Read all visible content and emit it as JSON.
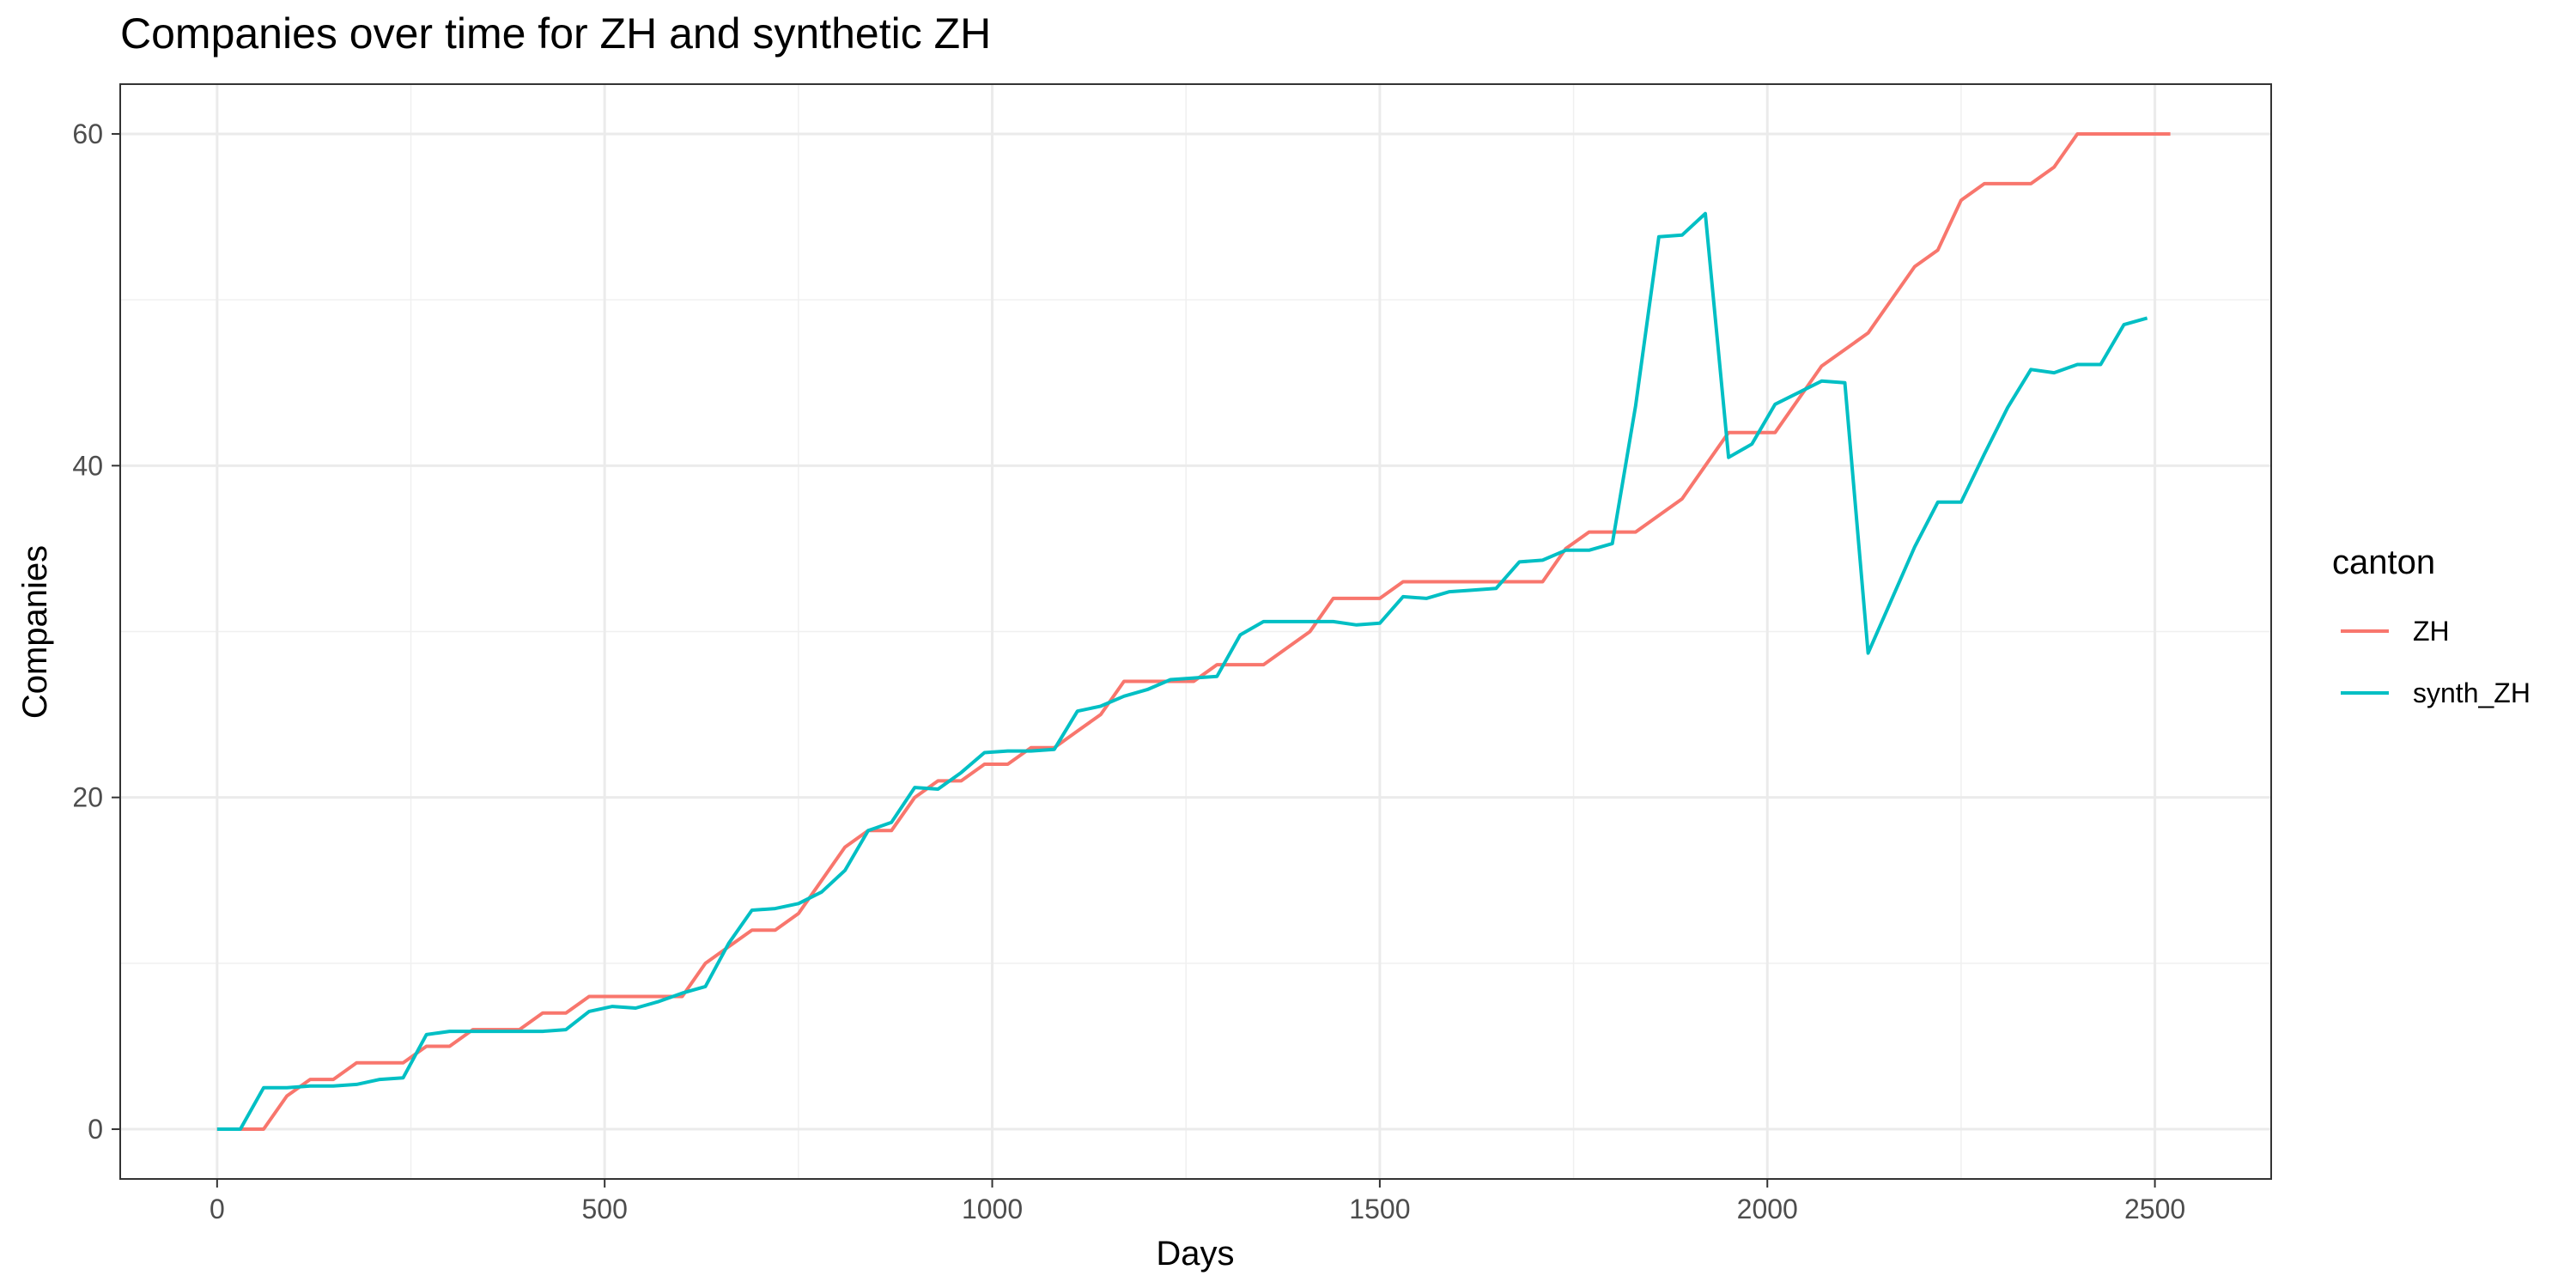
{
  "chart_data": {
    "type": "line",
    "title": "Companies over time for ZH and synthetic ZH",
    "xlabel": "Days",
    "ylabel": "Companies",
    "xlim": [
      -125,
      2650
    ],
    "ylim": [
      -3,
      63
    ],
    "x_ticks": [
      0,
      500,
      1000,
      1500,
      2000,
      2500
    ],
    "y_ticks": [
      0,
      20,
      40,
      60
    ],
    "grid": true,
    "legend": {
      "title": "canton",
      "placement": "right"
    },
    "series": [
      {
        "name": "ZH",
        "color": "#F8766D",
        "points": [
          [
            0,
            0
          ],
          [
            30,
            0
          ],
          [
            60,
            0
          ],
          [
            90,
            2
          ],
          [
            120,
            3
          ],
          [
            150,
            3
          ],
          [
            180,
            4
          ],
          [
            210,
            4
          ],
          [
            240,
            4
          ],
          [
            270,
            5
          ],
          [
            300,
            5
          ],
          [
            330,
            6
          ],
          [
            360,
            6
          ],
          [
            390,
            6
          ],
          [
            420,
            7
          ],
          [
            450,
            7
          ],
          [
            480,
            8
          ],
          [
            510,
            8
          ],
          [
            540,
            8
          ],
          [
            570,
            8
          ],
          [
            600,
            8
          ],
          [
            630,
            10
          ],
          [
            660,
            11
          ],
          [
            690,
            12
          ],
          [
            720,
            12
          ],
          [
            750,
            13
          ],
          [
            780,
            15
          ],
          [
            810,
            17
          ],
          [
            840,
            18
          ],
          [
            870,
            18
          ],
          [
            900,
            20
          ],
          [
            930,
            21
          ],
          [
            960,
            21
          ],
          [
            990,
            22
          ],
          [
            1020,
            22
          ],
          [
            1050,
            23
          ],
          [
            1080,
            23
          ],
          [
            1110,
            24
          ],
          [
            1140,
            25
          ],
          [
            1170,
            27
          ],
          [
            1200,
            27
          ],
          [
            1230,
            27
          ],
          [
            1260,
            27
          ],
          [
            1290,
            28
          ],
          [
            1320,
            28
          ],
          [
            1350,
            28
          ],
          [
            1380,
            29
          ],
          [
            1410,
            30
          ],
          [
            1440,
            32
          ],
          [
            1470,
            32
          ],
          [
            1500,
            32
          ],
          [
            1530,
            33
          ],
          [
            1560,
            33
          ],
          [
            1590,
            33
          ],
          [
            1620,
            33
          ],
          [
            1650,
            33
          ],
          [
            1680,
            33
          ],
          [
            1710,
            33
          ],
          [
            1740,
            35
          ],
          [
            1770,
            36
          ],
          [
            1800,
            36
          ],
          [
            1830,
            36
          ],
          [
            1860,
            37
          ],
          [
            1890,
            38
          ],
          [
            1920,
            40
          ],
          [
            1950,
            42
          ],
          [
            1980,
            42
          ],
          [
            2010,
            42
          ],
          [
            2040,
            44
          ],
          [
            2070,
            46
          ],
          [
            2100,
            47
          ],
          [
            2130,
            48
          ],
          [
            2160,
            50
          ],
          [
            2190,
            52
          ],
          [
            2220,
            53
          ],
          [
            2250,
            56
          ],
          [
            2280,
            57
          ],
          [
            2310,
            57
          ],
          [
            2340,
            57
          ],
          [
            2370,
            58
          ],
          [
            2400,
            60
          ],
          [
            2430,
            60
          ],
          [
            2460,
            60
          ],
          [
            2490,
            60
          ],
          [
            2520,
            60
          ]
        ]
      },
      {
        "name": "synth_ZH",
        "color": "#00BFC4",
        "points": [
          [
            0,
            0
          ],
          [
            30,
            0
          ],
          [
            60,
            2.5
          ],
          [
            90,
            2.5
          ],
          [
            120,
            2.6
          ],
          [
            150,
            2.6
          ],
          [
            180,
            2.7
          ],
          [
            210,
            3.0
          ],
          [
            240,
            3.1
          ],
          [
            270,
            5.7
          ],
          [
            300,
            5.9
          ],
          [
            330,
            5.9
          ],
          [
            360,
            5.9
          ],
          [
            390,
            5.9
          ],
          [
            420,
            5.9
          ],
          [
            450,
            6.0
          ],
          [
            480,
            7.1
          ],
          [
            510,
            7.4
          ],
          [
            540,
            7.3
          ],
          [
            570,
            7.7
          ],
          [
            600,
            8.2
          ],
          [
            630,
            8.6
          ],
          [
            660,
            11.2
          ],
          [
            690,
            13.2
          ],
          [
            720,
            13.3
          ],
          [
            750,
            13.6
          ],
          [
            780,
            14.3
          ],
          [
            810,
            15.6
          ],
          [
            840,
            18.0
          ],
          [
            870,
            18.5
          ],
          [
            900,
            20.6
          ],
          [
            930,
            20.5
          ],
          [
            960,
            21.5
          ],
          [
            990,
            22.7
          ],
          [
            1020,
            22.8
          ],
          [
            1050,
            22.8
          ],
          [
            1080,
            22.9
          ],
          [
            1110,
            25.2
          ],
          [
            1140,
            25.5
          ],
          [
            1170,
            26.1
          ],
          [
            1200,
            26.5
          ],
          [
            1230,
            27.1
          ],
          [
            1260,
            27.2
          ],
          [
            1290,
            27.3
          ],
          [
            1320,
            29.8
          ],
          [
            1350,
            30.6
          ],
          [
            1380,
            30.6
          ],
          [
            1410,
            30.6
          ],
          [
            1440,
            30.6
          ],
          [
            1470,
            30.4
          ],
          [
            1500,
            30.5
          ],
          [
            1530,
            32.1
          ],
          [
            1560,
            32.0
          ],
          [
            1590,
            32.4
          ],
          [
            1620,
            32.5
          ],
          [
            1650,
            32.6
          ],
          [
            1680,
            34.2
          ],
          [
            1710,
            34.3
          ],
          [
            1740,
            34.9
          ],
          [
            1770,
            34.9
          ],
          [
            1800,
            35.3
          ],
          [
            1830,
            43.6
          ],
          [
            1860,
            53.8
          ],
          [
            1890,
            53.9
          ],
          [
            1920,
            55.2
          ],
          [
            1950,
            40.5
          ],
          [
            1980,
            41.3
          ],
          [
            2010,
            43.7
          ],
          [
            2040,
            44.4
          ],
          [
            2070,
            45.1
          ],
          [
            2100,
            45.0
          ],
          [
            2130,
            28.7
          ],
          [
            2160,
            31.9
          ],
          [
            2190,
            35.1
          ],
          [
            2220,
            37.8
          ],
          [
            2250,
            37.8
          ],
          [
            2280,
            40.7
          ],
          [
            2310,
            43.5
          ],
          [
            2340,
            45.8
          ],
          [
            2370,
            45.6
          ],
          [
            2400,
            46.1
          ],
          [
            2430,
            46.1
          ],
          [
            2460,
            48.5
          ],
          [
            2490,
            48.9
          ]
        ]
      }
    ]
  }
}
